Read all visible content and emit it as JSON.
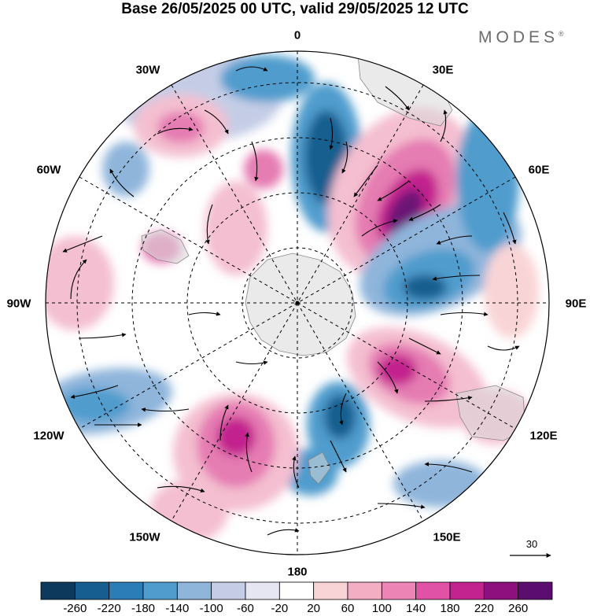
{
  "title": "Base 26/05/2025 00 UTC, valid 29/05/2025 12 UTC",
  "brand": "MODES",
  "brand_mark": "®",
  "longitude_labels": {
    "l0": "0",
    "l30e": "30E",
    "l60e": "60E",
    "l90e": "90E",
    "l120e": "120E",
    "l150e": "150E",
    "l180": "180",
    "l150w": "150W",
    "l120w": "120W",
    "l90w": "90W",
    "l60w": "60W",
    "l30w": "30W"
  },
  "reference_vector": "30",
  "colorbar": {
    "colors": [
      "#0d3a5c",
      "#155e8f",
      "#2b7db8",
      "#4f9ccd",
      "#8fb5db",
      "#c5cde6",
      "#e6e6f2",
      "#ffffff",
      "#f9d4d6",
      "#f4aec4",
      "#ec85b6",
      "#e052a6",
      "#c3238e",
      "#8e0f7e",
      "#5b0d70"
    ],
    "labels": [
      "-260",
      "-220",
      "-180",
      "-140",
      "-100",
      "-60",
      "-20",
      "20",
      "60",
      "100",
      "140",
      "180",
      "220",
      "260"
    ]
  },
  "colors": {
    "land": "#d9d9d9",
    "pos_light": "#f4bfd0",
    "pos_mid": "#e57cb2",
    "pos_strong": "#c3238e",
    "pos_extreme": "#6a1276",
    "neg_light": "#c5cde6",
    "neg_mid": "#4f9ccd",
    "neg_strong": "#155e8f"
  }
}
